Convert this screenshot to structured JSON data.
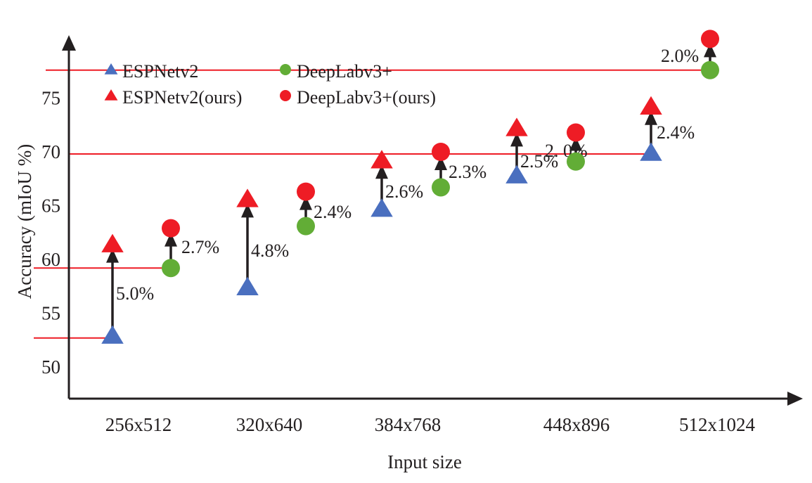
{
  "chart_data": {
    "type": "scatter",
    "title": "",
    "xlabel": "Input size",
    "ylabel": "Accuracy (mIoU %)",
    "categories": [
      "256x512",
      "320x640",
      "384x768",
      "448x896",
      "512x1024"
    ],
    "yticks": [
      50,
      55,
      60,
      65,
      70,
      75
    ],
    "ylim": [
      47,
      81
    ],
    "grid": false,
    "legend_position": "top-left",
    "series": [
      {
        "name": "ESPNetv2",
        "marker": "triangle",
        "color": "#4a6fbf",
        "values": [
          52.9,
          57.4,
          64.7,
          67.8,
          69.9
        ]
      },
      {
        "name": "ESPNetv2(ours)",
        "marker": "triangle",
        "color": "#ee1c25",
        "values": [
          61.4,
          65.6,
          69.2,
          72.2,
          74.2
        ]
      },
      {
        "name": "DeepLabv3+",
        "marker": "circle",
        "color": "#62ad36",
        "values": [
          59.2,
          63.1,
          66.7,
          69.1,
          77.6
        ]
      },
      {
        "name": "DeepLabv3+(ours)",
        "marker": "circle",
        "color": "#ee1c25",
        "values": [
          62.9,
          66.3,
          70.0,
          71.8,
          80.5
        ]
      }
    ],
    "improvements": {
      "ESPNetv2": [
        "5.0%",
        "4.8%",
        "2.6%",
        "2.5%",
        "2.4%"
      ],
      "DeepLabv3+": [
        "2.7%",
        "2.4%",
        "2.3%",
        "2. 0%",
        "2.0%"
      ]
    },
    "reference_lines": {
      "color": "#ee1c25",
      "values": [
        77.6,
        69.8,
        59.2,
        52.7
      ]
    }
  }
}
